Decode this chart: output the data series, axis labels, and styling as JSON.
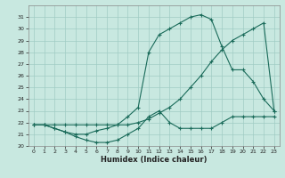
{
  "xlabel": "Humidex (Indice chaleur)",
  "xlim": [
    -0.5,
    23.5
  ],
  "ylim": [
    20,
    32
  ],
  "yticks": [
    20,
    21,
    22,
    23,
    24,
    25,
    26,
    27,
    28,
    29,
    30,
    31
  ],
  "xticks": [
    0,
    1,
    2,
    3,
    4,
    5,
    6,
    7,
    8,
    9,
    10,
    11,
    12,
    13,
    14,
    15,
    16,
    17,
    18,
    19,
    20,
    21,
    22,
    23
  ],
  "background_color": "#c8e8e0",
  "grid_color": "#a0ccc4",
  "line_color": "#1a6b5a",
  "line1_x": [
    0,
    1,
    2,
    3,
    4,
    5,
    6,
    7,
    8,
    9,
    10,
    11,
    12,
    13,
    14,
    15,
    16,
    17,
    18,
    19,
    20,
    21,
    22,
    23
  ],
  "line1_y": [
    21.8,
    21.8,
    21.8,
    21.8,
    21.8,
    21.8,
    21.8,
    21.8,
    21.8,
    21.8,
    22.0,
    22.3,
    22.8,
    23.3,
    24.0,
    25.0,
    26.0,
    27.2,
    28.2,
    29.0,
    29.5,
    30.0,
    30.5,
    23.0
  ],
  "line2_x": [
    0,
    1,
    2,
    3,
    4,
    5,
    6,
    7,
    8,
    9,
    10,
    11,
    12,
    13,
    14,
    15,
    16,
    17,
    18,
    19,
    20,
    21,
    22,
    23
  ],
  "line2_y": [
    21.8,
    21.8,
    21.5,
    21.2,
    21.0,
    21.0,
    21.3,
    21.5,
    21.8,
    22.5,
    23.3,
    28.0,
    29.5,
    30.0,
    30.5,
    31.0,
    31.2,
    30.8,
    28.5,
    26.5,
    26.5,
    25.5,
    24.0,
    23.0
  ],
  "line3_x": [
    0,
    1,
    2,
    3,
    4,
    5,
    6,
    7,
    8,
    9,
    10,
    11,
    12,
    13,
    14,
    15,
    16,
    17,
    18,
    19,
    20,
    21,
    22,
    23
  ],
  "line3_y": [
    21.8,
    21.8,
    21.5,
    21.2,
    20.8,
    20.5,
    20.3,
    20.3,
    20.5,
    21.0,
    21.5,
    22.5,
    23.0,
    22.0,
    21.5,
    21.5,
    21.5,
    21.5,
    22.0,
    22.5,
    22.5,
    22.5,
    22.5,
    22.5
  ]
}
